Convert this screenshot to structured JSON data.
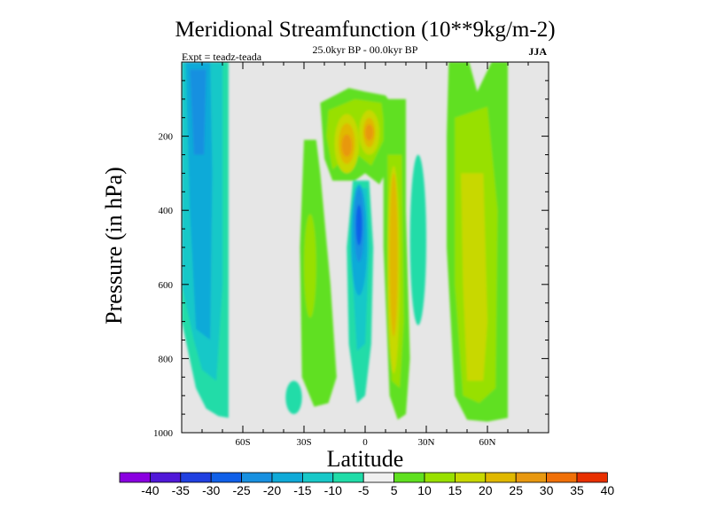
{
  "chart_data": {
    "type": "contour",
    "title": "Meridional Streamfunction (10**9kg/m-2)",
    "subtitle": "25.0kyr BP - 00.0kyr BP",
    "experiment": "Expt = teadz-teada",
    "season": "JJA",
    "xlabel": "Latitude",
    "ylabel": "Pressure (in hPa)",
    "xlim": [
      -90,
      90
    ],
    "ylim": [
      1000,
      0
    ],
    "x_ticks": [
      {
        "value": -60,
        "label": "60S"
      },
      {
        "value": -30,
        "label": "30S"
      },
      {
        "value": 0,
        "label": "0"
      },
      {
        "value": 30,
        "label": "30N"
      },
      {
        "value": 60,
        "label": "60N"
      }
    ],
    "y_ticks": [
      {
        "value": 200,
        "label": "200"
      },
      {
        "value": 400,
        "label": "400"
      },
      {
        "value": 600,
        "label": "600"
      },
      {
        "value": 800,
        "label": "800"
      },
      {
        "value": 1000,
        "label": "1000"
      }
    ],
    "colorbar": {
      "levels": [
        -40,
        -35,
        -30,
        -25,
        -20,
        -15,
        -10,
        -5,
        5,
        10,
        15,
        20,
        25,
        30,
        35,
        40
      ],
      "labels": [
        "-40",
        "-35",
        "-30",
        "-25",
        "-20",
        "-15",
        "-10",
        "-5",
        "5",
        "10",
        "15",
        "20",
        "25",
        "30",
        "35",
        "40"
      ],
      "colors": [
        "#8a00e0",
        "#5018d8",
        "#2040e0",
        "#1060e8",
        "#1890e0",
        "#10aad8",
        "#18c8c8",
        "#20dca8",
        "#f0f0f0",
        "#60e020",
        "#98e000",
        "#c8d800",
        "#e0b800",
        "#e89810",
        "#f07008",
        "#e83000"
      ]
    },
    "features": [
      {
        "name": "southern-high-latitude-negative-cell",
        "lat_range": [
          -89,
          -62
        ],
        "p_range": [
          0,
          960
        ],
        "min_value": -22
      },
      {
        "name": "equatorial-negative-cell",
        "center_lat": -3,
        "center_p": 440,
        "min_value": -28
      },
      {
        "name": "upper-tropical-positive-cell-south",
        "center_lat": -9,
        "center_p": 230,
        "max_value": 28
      },
      {
        "name": "upper-tropical-positive-cell-north",
        "center_lat": 2,
        "center_p": 190,
        "max_value": 28
      },
      {
        "name": "northern-tropical-positive-cell",
        "center_lat": 14,
        "center_p": 500,
        "max_value": 22
      },
      {
        "name": "northern-midlatitude-positive-cell",
        "center_lat": 52,
        "center_p": 550,
        "max_value": 20
      },
      {
        "name": "small-negative-cell-south",
        "center_lat": -36,
        "center_p": 900,
        "min_value": -10
      },
      {
        "name": "small-negative-cell-north",
        "center_lat": 25,
        "center_p": 450,
        "min_value": -10
      }
    ]
  }
}
